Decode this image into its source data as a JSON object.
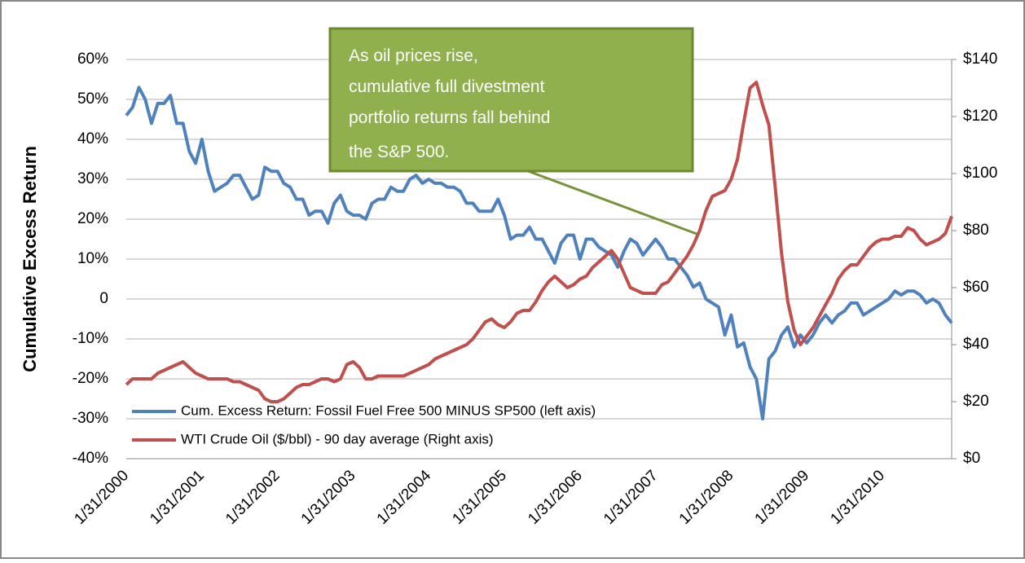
{
  "chart_data": {
    "type": "line",
    "ylabel": "Cumulative Excess Return",
    "annotation": [
      "As oil prices rise,",
      "cumulative full divestment",
      "portfolio returns fall behind",
      "the  S&P 500."
    ],
    "categories": [
      "1/31/2000",
      null,
      null,
      null,
      null,
      null,
      null,
      null,
      null,
      null,
      null,
      null,
      "1/31/2001",
      null,
      null,
      null,
      null,
      null,
      null,
      null,
      null,
      null,
      null,
      null,
      "1/31/2002",
      null,
      null,
      null,
      null,
      null,
      null,
      null,
      null,
      null,
      null,
      null,
      "1/31/2003",
      null,
      null,
      null,
      null,
      null,
      null,
      null,
      null,
      null,
      null,
      null,
      "1/31/2004",
      null,
      null,
      null,
      null,
      null,
      null,
      null,
      null,
      null,
      null,
      null,
      "1/31/2005",
      null,
      null,
      null,
      null,
      null,
      null,
      null,
      null,
      null,
      null,
      null,
      "1/31/2006",
      null,
      null,
      null,
      null,
      null,
      null,
      null,
      null,
      null,
      null,
      null,
      "1/31/2007",
      null,
      null,
      null,
      null,
      null,
      null,
      null,
      null,
      null,
      null,
      null,
      "1/31/2008",
      null,
      null,
      null,
      null,
      null,
      null,
      null,
      null,
      null,
      null,
      null,
      "1/31/2009",
      null,
      null,
      null,
      null,
      null,
      null,
      null,
      null,
      null,
      null,
      null,
      "1/31/2010",
      null,
      null,
      null,
      null,
      null,
      null,
      null,
      null,
      null,
      null,
      null
    ],
    "series": [
      {
        "name": "Cum. Excess Return: Fossil Fuel Free 500 MINUS SP500 (left axis)",
        "color": "#4f81bd",
        "values": [
          46,
          48,
          53,
          50,
          44,
          49,
          49,
          51,
          44,
          44,
          37,
          34,
          40,
          32,
          27,
          28,
          29,
          31,
          31,
          28,
          25,
          26,
          33,
          32,
          32,
          29,
          28,
          25,
          25,
          21,
          22,
          22,
          19,
          24,
          26,
          22,
          21,
          21,
          20,
          24,
          25,
          25,
          28,
          27,
          27,
          30,
          31,
          29,
          30,
          29,
          29,
          28,
          28,
          27,
          24,
          24,
          22,
          22,
          22,
          25,
          21,
          15,
          16,
          16,
          18,
          15,
          15,
          12,
          9,
          14,
          16,
          16,
          10,
          15,
          15,
          13,
          12,
          11,
          8,
          12,
          15,
          14,
          11,
          13,
          15,
          13,
          10,
          10,
          8,
          6,
          3,
          4,
          0,
          -1,
          -2,
          -9,
          -4,
          -12,
          -11,
          -17,
          -20,
          -30,
          -15,
          -13,
          -9,
          -7,
          -12,
          -9,
          -11,
          -9,
          -6,
          -4,
          -6,
          -4,
          -3,
          -1,
          -1,
          -4,
          -3,
          -2,
          -1,
          0,
          2,
          1,
          2,
          2,
          1,
          -1,
          0,
          -1,
          -4,
          -6
        ]
      },
      {
        "name": "WTI Crude Oil ($/bbl) - 90 day average (Right axis)",
        "color": "#c0504d",
        "axis": "y2",
        "values": [
          26,
          28,
          28,
          28,
          28,
          30,
          31,
          32,
          33,
          34,
          32,
          30,
          29,
          28,
          28,
          28,
          28,
          27,
          27,
          26,
          25,
          24,
          21,
          20,
          20,
          21,
          23,
          25,
          26,
          26,
          27,
          28,
          28,
          27,
          28,
          33,
          34,
          32,
          28,
          28,
          29,
          29,
          29,
          29,
          29,
          30,
          31,
          32,
          33,
          35,
          36,
          37,
          38,
          39,
          40,
          42,
          45,
          48,
          49,
          47,
          46,
          48,
          51,
          52,
          52,
          55,
          59,
          62,
          64,
          62,
          60,
          61,
          63,
          64,
          67,
          69,
          71,
          73,
          70,
          65,
          60,
          59,
          58,
          58,
          58,
          61,
          62,
          65,
          68,
          71,
          75,
          80,
          87,
          92,
          93,
          94,
          98,
          105,
          118,
          130,
          132,
          124,
          117,
          95,
          72,
          55,
          45,
          40,
          43,
          46,
          50,
          54,
          58,
          63,
          66,
          68,
          68,
          71,
          74,
          76,
          77,
          77,
          78,
          78,
          81,
          80,
          77,
          75,
          76,
          77,
          79,
          85
        ]
      }
    ],
    "ylim": [
      -40,
      60
    ],
    "yticks": [
      {
        "value": -40,
        "label": "-40%"
      },
      {
        "value": -30,
        "label": "-30%"
      },
      {
        "value": -20,
        "label": "-20%"
      },
      {
        "value": -10,
        "label": "-10%"
      },
      0,
      {
        "value": 10,
        "label": "10%"
      },
      {
        "value": 20,
        "label": "20%"
      },
      {
        "value": 30,
        "label": "30%"
      },
      {
        "value": 40,
        "label": "40%"
      },
      {
        "value": 50,
        "label": "50%"
      },
      {
        "value": 60,
        "label": "60%"
      }
    ],
    "y2lim": [
      0,
      140
    ],
    "y2ticks": [
      {
        "value": 0,
        "label": "$0"
      },
      {
        "value": 20,
        "label": "$20"
      },
      {
        "value": 40,
        "label": "$40"
      },
      {
        "value": 60,
        "label": "$60"
      },
      {
        "value": 80,
        "label": "$80"
      },
      {
        "value": 100,
        "label": "$100"
      },
      {
        "value": 120,
        "label": "$120"
      },
      {
        "value": 140,
        "label": "$140"
      }
    ],
    "grid": true
  }
}
